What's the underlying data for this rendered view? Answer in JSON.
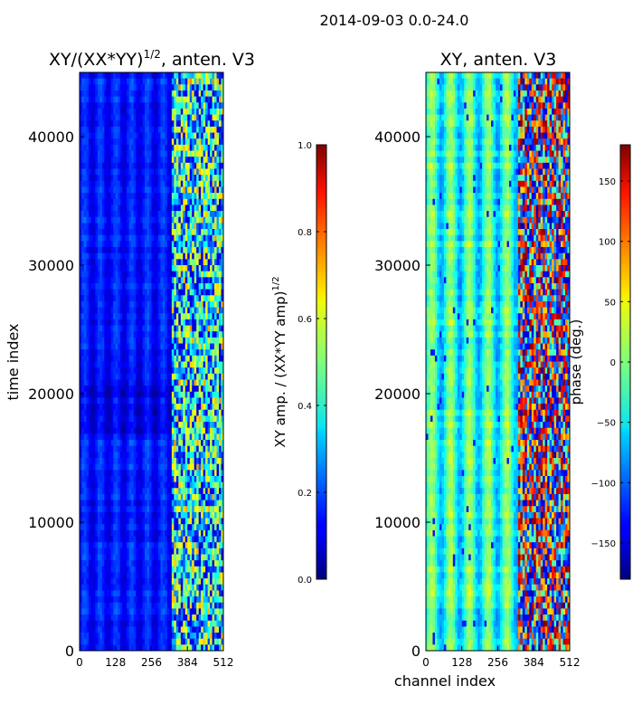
{
  "figure_title": "2014-09-03 0.0-24.0",
  "chart_data": [
    {
      "type": "heatmap",
      "title_prefix": "XY/(XX*YY)",
      "title_exponent": "1/2",
      "title_suffix": ", anten. V3",
      "xlabel": "",
      "ylabel": "time index",
      "xlim": [
        0,
        512
      ],
      "ylim": [
        0,
        45000
      ],
      "xticks": [
        0,
        128,
        256,
        384,
        512
      ],
      "yticks": [
        0,
        10000,
        20000,
        30000,
        40000
      ],
      "colorbar": {
        "label": "XY amp. / (XX*YY amp)",
        "label_exponent": "1/2",
        "colormap": "jet",
        "range": [
          0.0,
          1.0
        ],
        "ticks": [
          "0.0",
          "0.2",
          "0.4",
          "0.6",
          "0.8",
          "1.0"
        ]
      }
    },
    {
      "type": "heatmap",
      "title": "XY, anten. V3",
      "xlabel": "channel index",
      "ylabel": "",
      "xlim": [
        0,
        512
      ],
      "ylim": [
        0,
        45000
      ],
      "xticks": [
        0,
        128,
        256,
        384,
        512
      ],
      "yticks": [
        0,
        10000,
        20000,
        30000,
        40000
      ],
      "colorbar": {
        "label": "phase (deg.)",
        "colormap": "jet",
        "range": [
          -180,
          180
        ],
        "ticks": [
          "−150",
          "−100",
          "−50",
          "0",
          "50",
          "100",
          "150"
        ]
      }
    }
  ]
}
